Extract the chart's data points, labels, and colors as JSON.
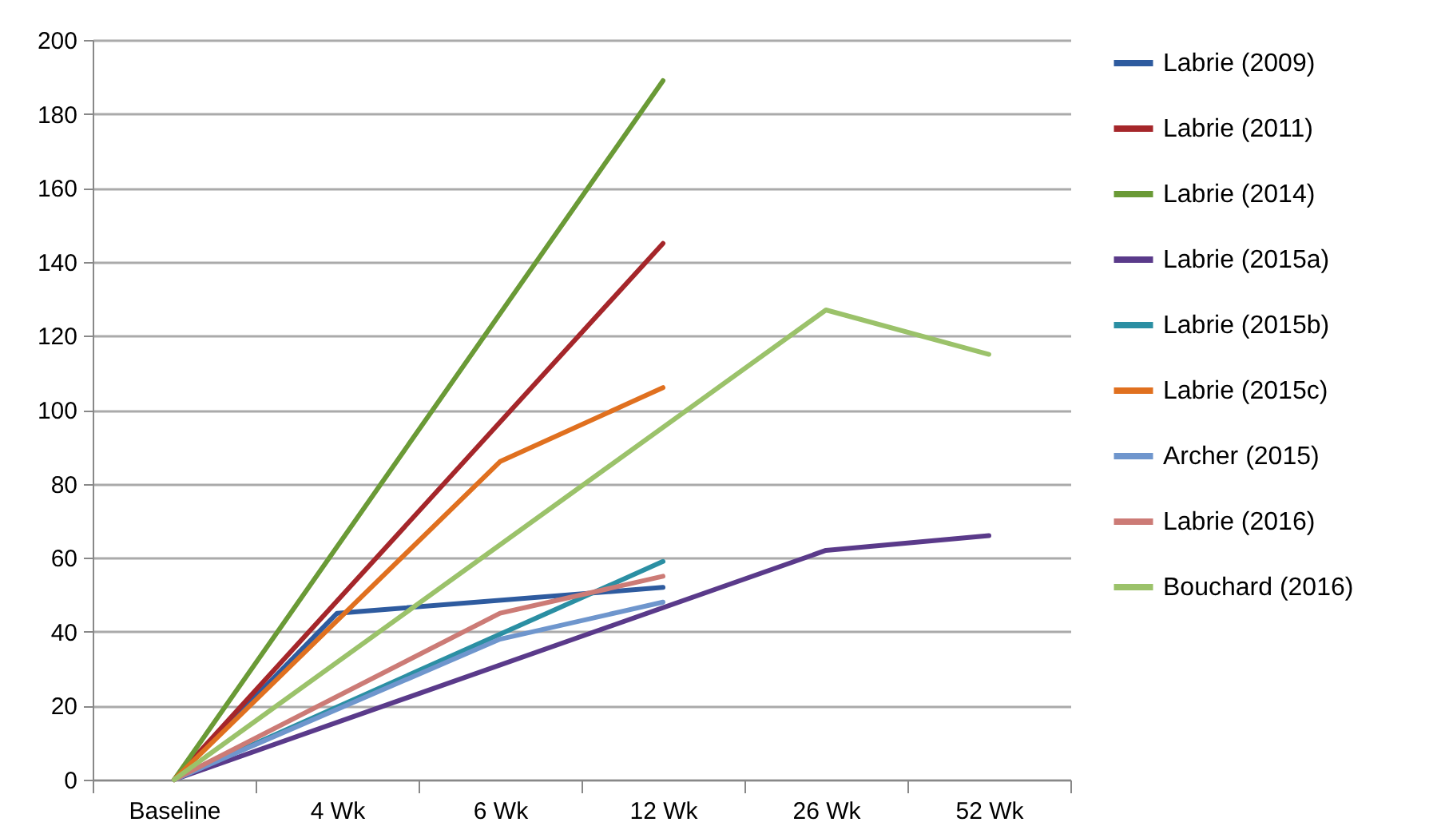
{
  "chart_data": {
    "type": "line",
    "categories": [
      "Baseline",
      "4 Wk",
      "6 Wk",
      "12 Wk",
      "26 Wk",
      "52 Wk"
    ],
    "ylim": [
      0,
      200
    ],
    "yticks": [
      0,
      20,
      40,
      60,
      80,
      100,
      120,
      140,
      160,
      180,
      200
    ],
    "grid": "y",
    "legend": "right",
    "marker": "none",
    "line_style": "solid",
    "series": [
      {
        "name": "Labrie (2009)",
        "color": "#2e5b9f",
        "values": [
          0,
          45,
          null,
          52,
          null,
          null
        ]
      },
      {
        "name": "Labrie (2011)",
        "color": "#a5262a",
        "values": [
          0,
          null,
          null,
          145,
          null,
          null
        ]
      },
      {
        "name": "Labrie (2014)",
        "color": "#6a9a36",
        "values": [
          0,
          null,
          null,
          189,
          null,
          null
        ]
      },
      {
        "name": "Labrie (2015a)",
        "color": "#5a3a8a",
        "values": [
          0,
          null,
          null,
          null,
          62,
          66
        ]
      },
      {
        "name": "Labrie (2015b)",
        "color": "#2b8fa3",
        "values": [
          0,
          null,
          null,
          59,
          null,
          null
        ]
      },
      {
        "name": "Labrie (2015c)",
        "color": "#e0701f",
        "values": [
          0,
          null,
          86,
          106,
          null,
          null
        ]
      },
      {
        "name": "Archer (2015)",
        "color": "#6f96cd",
        "values": [
          0,
          null,
          38,
          48,
          null,
          null
        ]
      },
      {
        "name": "Labrie (2016)",
        "color": "#cc7b76",
        "values": [
          0,
          null,
          45,
          55,
          null,
          null
        ]
      },
      {
        "name": "Bouchard (2016)",
        "color": "#9bc26a",
        "values": [
          0,
          null,
          null,
          null,
          127,
          115
        ]
      }
    ]
  }
}
